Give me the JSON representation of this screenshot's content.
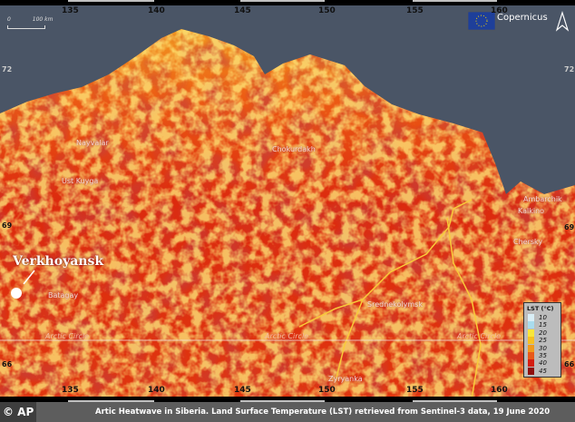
{
  "map": {
    "longitude_ticks": [
      "135",
      "140",
      "145",
      "150",
      "155",
      "160"
    ],
    "latitude_ticks": [
      "72",
      "69",
      "66"
    ],
    "scale_bar": {
      "start": "0",
      "end": "100 km"
    },
    "logo_text": "Copernicus",
    "highlight_place": "Verkhoyansk",
    "places": [
      "Nayvalar",
      "Chokurdakh",
      "Ust Kuyga",
      "Batagay",
      "Srednekolymsk",
      "Zyryanka",
      "Ambarchik",
      "Kalkino",
      "Chersky"
    ],
    "arctic_circle_label": "Arctic Circle",
    "colors": {
      "sea": "#4a5566",
      "land_hot": "#d8200c",
      "land_warm": "#f06a10",
      "land_cool": "#f7c52a"
    }
  },
  "legend": {
    "title": "LST (°C)",
    "items": [
      {
        "value": "10",
        "color": "#d9eef6"
      },
      {
        "value": "15",
        "color": "#a9dcee"
      },
      {
        "value": "20",
        "color": "#f8e63a"
      },
      {
        "value": "25",
        "color": "#f6c021"
      },
      {
        "value": "30",
        "color": "#f09a1c"
      },
      {
        "value": "35",
        "color": "#e8591a"
      },
      {
        "value": "40",
        "color": "#d41d12"
      },
      {
        "value": "45",
        "color": "#8e0e0e"
      }
    ]
  },
  "caption": {
    "credit": "© AP",
    "text": "Artic Heatwave in Siberia. Land Surface Temperature (LST) retrieved from Sentinel-3 data, 19 June 2020"
  }
}
